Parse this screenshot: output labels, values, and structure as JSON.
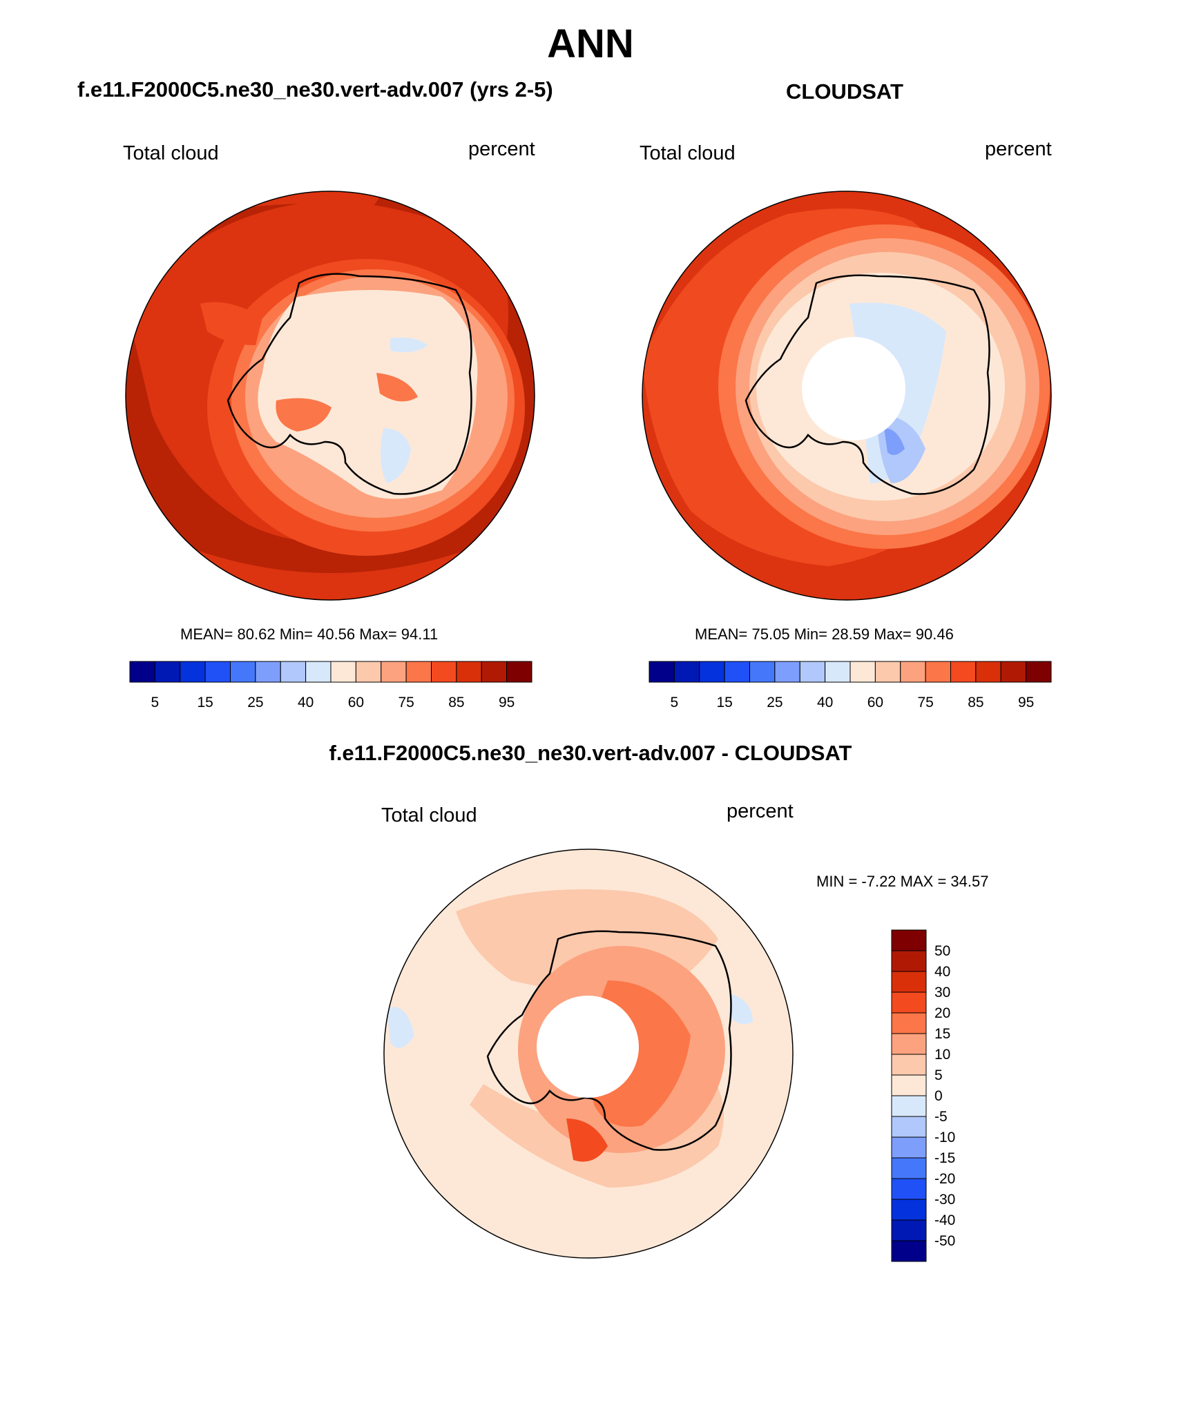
{
  "page_title": "ANN",
  "panels": {
    "test": {
      "title": "f.e11.F2000C5.ne30_ne30.vert-adv.007 (yrs 2-5)",
      "left_label": "Total cloud",
      "right_label": "percent",
      "stats": "MEAN=  80.62  Min=  40.56  Max=  94.11"
    },
    "obs": {
      "title": "CLOUDSAT",
      "left_label": "Total cloud",
      "right_label": "percent",
      "stats": "MEAN=  75.05  Min=  28.59  Max=  90.46"
    },
    "diff": {
      "title": "f.e11.F2000C5.ne30_ne30.vert-adv.007 - CLOUDSAT",
      "left_label": "Total cloud",
      "right_label": "percent",
      "stats": "MIN =  -7.22 MAX =  34.57"
    }
  },
  "colorbars": {
    "horizontal": {
      "colors": [
        "#00008b",
        "#0018b4",
        "#0432dc",
        "#1f51f7",
        "#4477fa",
        "#7e9efb",
        "#b0c8fb",
        "#d8e8fb",
        "#fde8d7",
        "#fcc9ac",
        "#fca27f",
        "#fb7648",
        "#f34a1f",
        "#d93009",
        "#b01a05",
        "#7e0000"
      ],
      "tick_labels": [
        "5",
        "15",
        "25",
        "40",
        "60",
        "75",
        "85",
        "95"
      ]
    },
    "vertical": {
      "colors": [
        "#7e0000",
        "#b01a05",
        "#d93009",
        "#f34a1f",
        "#fb7648",
        "#fca27f",
        "#fcc9ac",
        "#fde8d7",
        "#d8e8fb",
        "#b0c8fb",
        "#7e9efb",
        "#4477fa",
        "#1f51f7",
        "#0432dc",
        "#0018b4",
        "#00008b"
      ],
      "tick_labels": [
        "50",
        "40",
        "30",
        "20",
        "15",
        "10",
        "5",
        "0",
        "-5",
        "-10",
        "-15",
        "-20",
        "-30",
        "-40",
        "-50"
      ]
    }
  }
}
